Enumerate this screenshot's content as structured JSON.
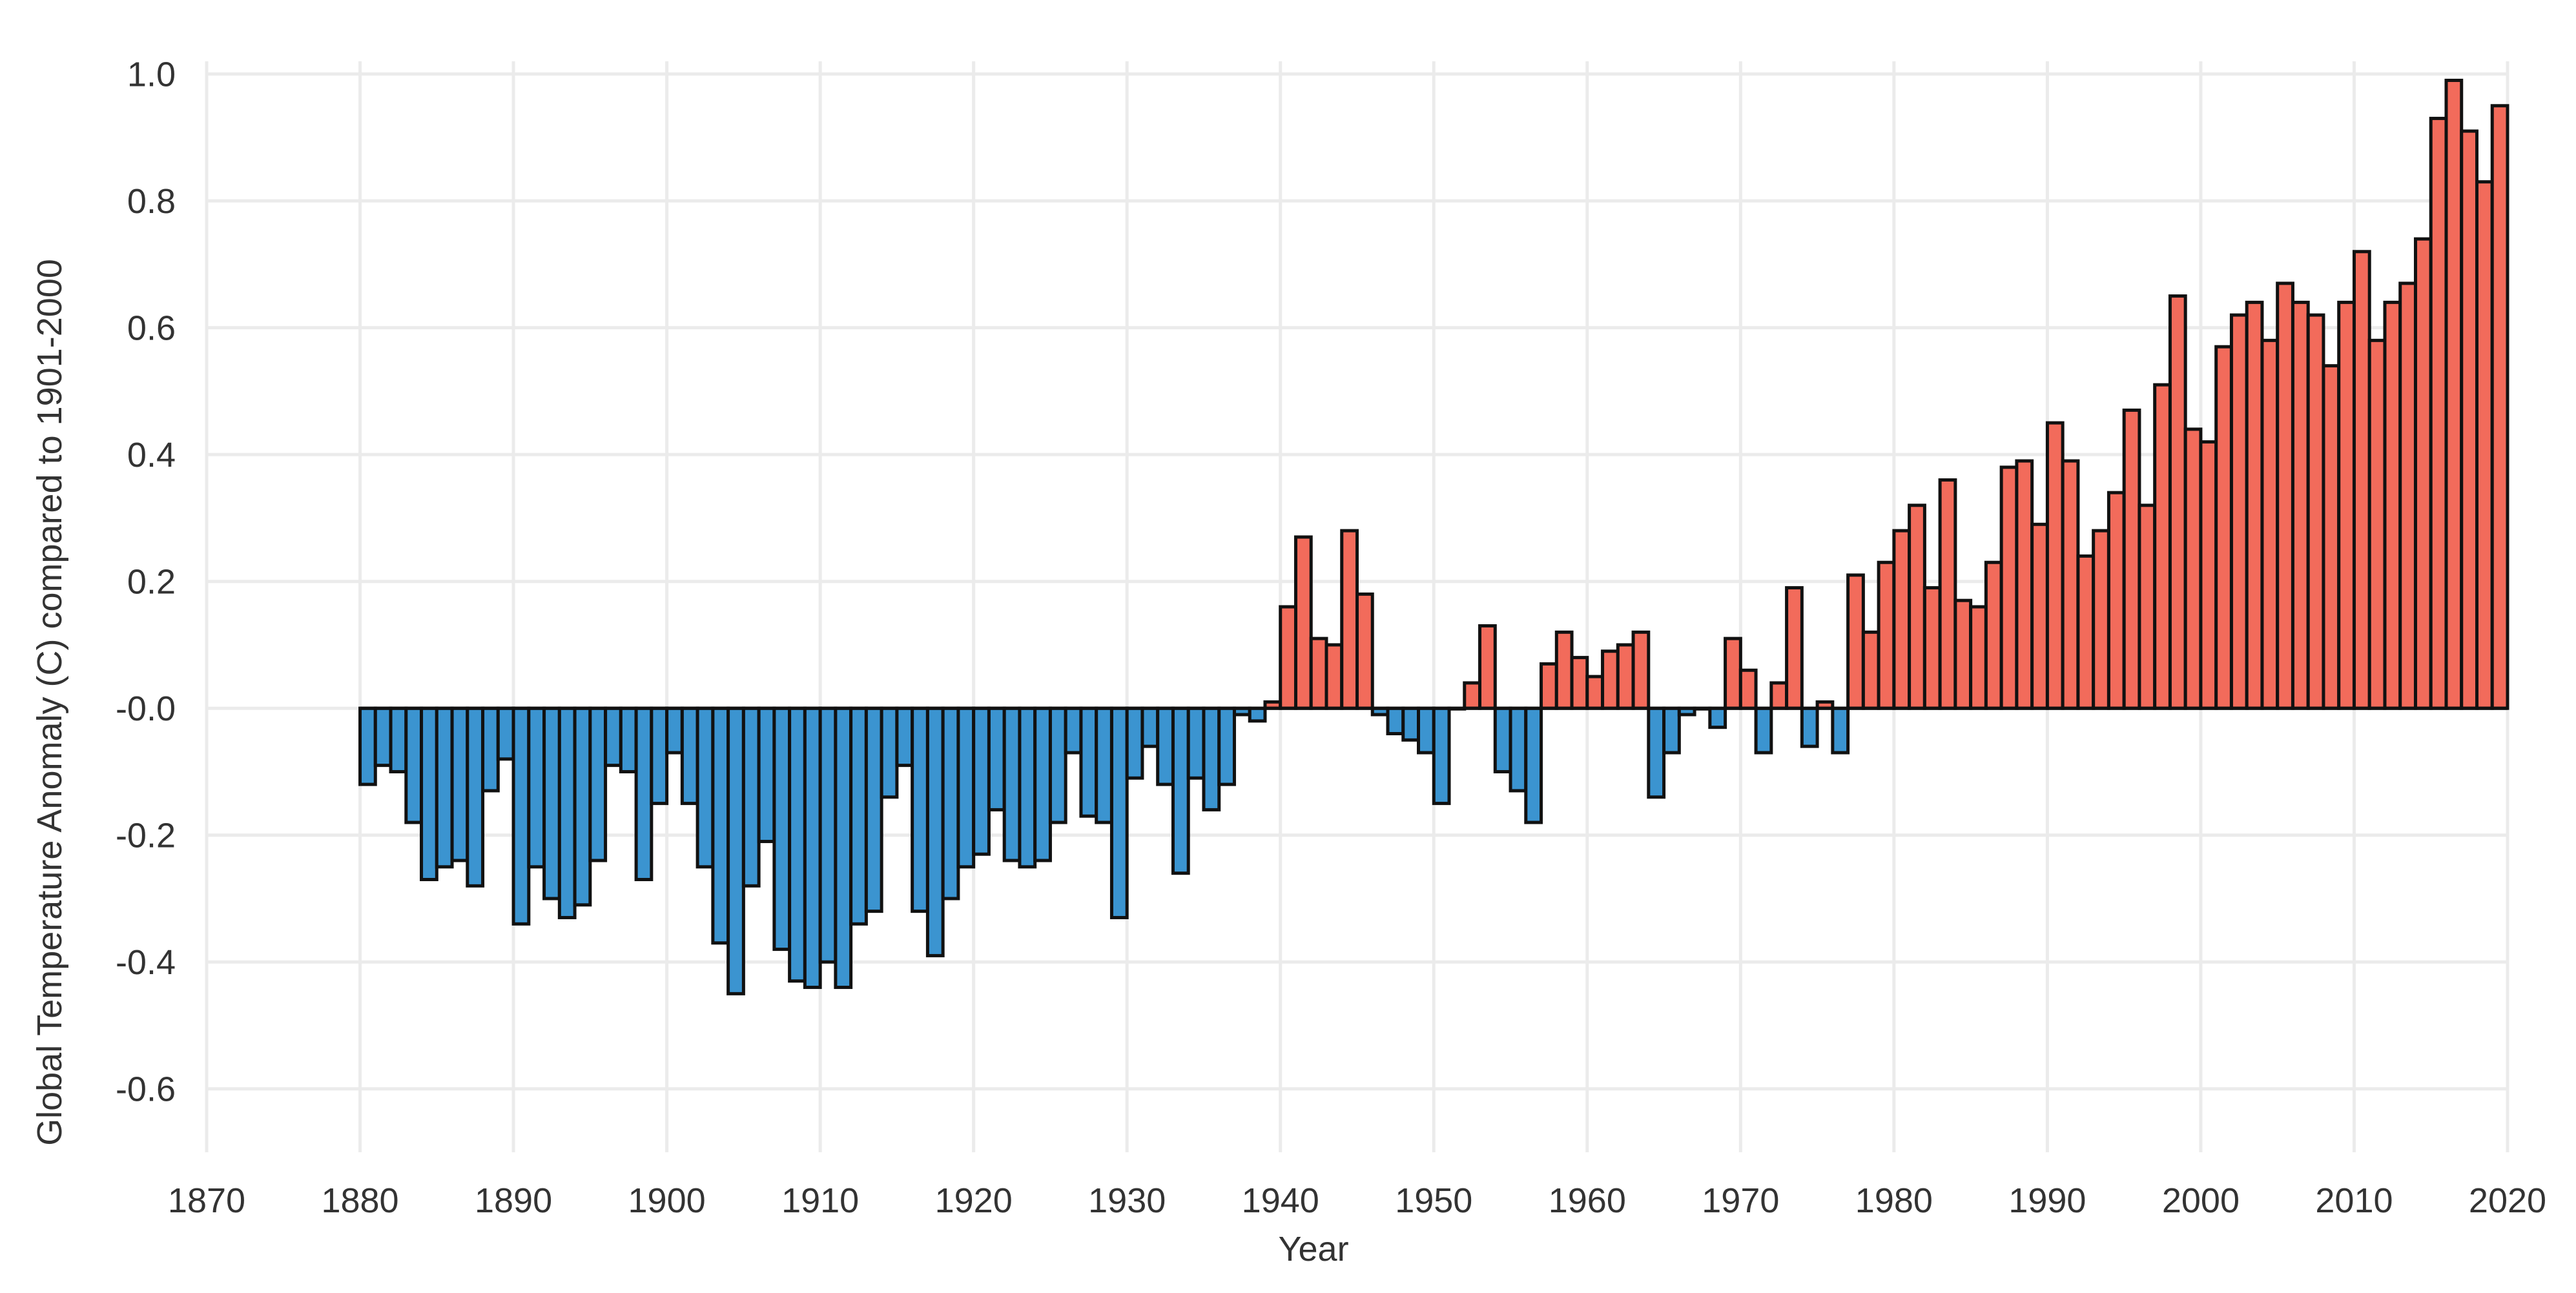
{
  "chart_data": {
    "type": "bar",
    "title": "",
    "xlabel": "Year",
    "ylabel": "Global Temperature Anomaly (C) compared to 1901-2000",
    "xlim": [
      1870,
      2020
    ],
    "ylim": [
      -0.7,
      1.02
    ],
    "x_ticks": [
      1870,
      1880,
      1890,
      1900,
      1910,
      1920,
      1930,
      1940,
      1950,
      1960,
      1970,
      1980,
      1990,
      2000,
      2010,
      2020
    ],
    "x_tick_labels": [
      "1870",
      "1880",
      "1890",
      "1900",
      "1910",
      "1920",
      "1930",
      "1940",
      "1950",
      "1960",
      "1970",
      "1980",
      "1990",
      "2000",
      "2010",
      "2020"
    ],
    "y_ticks": [
      -0.6,
      -0.4,
      -0.2,
      0.0,
      0.2,
      0.4,
      0.6,
      0.8,
      1.0
    ],
    "y_tick_labels": [
      "-0.6",
      "-0.4",
      "-0.2",
      "-0.0",
      "0.2",
      "0.4",
      "0.6",
      "0.8",
      "1.0"
    ],
    "grid": true,
    "legend": "none",
    "colors": {
      "positive": "#f26b5b",
      "negative": "#3b94d0",
      "outline": "#111111",
      "grid": "#ebebeb"
    },
    "x": [
      1880,
      1881,
      1882,
      1883,
      1884,
      1885,
      1886,
      1887,
      1888,
      1889,
      1890,
      1891,
      1892,
      1893,
      1894,
      1895,
      1896,
      1897,
      1898,
      1899,
      1900,
      1901,
      1902,
      1903,
      1904,
      1905,
      1906,
      1907,
      1908,
      1909,
      1910,
      1911,
      1912,
      1913,
      1914,
      1915,
      1916,
      1917,
      1918,
      1919,
      1920,
      1921,
      1922,
      1923,
      1924,
      1925,
      1926,
      1927,
      1928,
      1929,
      1930,
      1931,
      1932,
      1933,
      1934,
      1935,
      1936,
      1937,
      1938,
      1939,
      1940,
      1941,
      1942,
      1943,
      1944,
      1945,
      1946,
      1947,
      1948,
      1949,
      1950,
      1951,
      1952,
      1953,
      1954,
      1955,
      1956,
      1957,
      1958,
      1959,
      1960,
      1961,
      1962,
      1963,
      1964,
      1965,
      1966,
      1967,
      1968,
      1969,
      1970,
      1971,
      1972,
      1973,
      1974,
      1975,
      1976,
      1977,
      1978,
      1979,
      1980,
      1981,
      1982,
      1983,
      1984,
      1985,
      1986,
      1987,
      1988,
      1989,
      1990,
      1991,
      1992,
      1993,
      1994,
      1995,
      1996,
      1997,
      1998,
      1999,
      2000,
      2001,
      2002,
      2003,
      2004,
      2005,
      2006,
      2007,
      2008,
      2009,
      2010,
      2011,
      2012,
      2013,
      2014,
      2015,
      2016,
      2017,
      2018,
      2019
    ],
    "values": [
      -0.12,
      -0.09,
      -0.1,
      -0.18,
      -0.27,
      -0.25,
      -0.24,
      -0.28,
      -0.13,
      -0.08,
      -0.34,
      -0.25,
      -0.3,
      -0.33,
      -0.31,
      -0.24,
      -0.09,
      -0.1,
      -0.27,
      -0.15,
      -0.07,
      -0.15,
      -0.25,
      -0.37,
      -0.45,
      -0.28,
      -0.21,
      -0.38,
      -0.43,
      -0.44,
      -0.4,
      -0.44,
      -0.34,
      -0.32,
      -0.14,
      -0.09,
      -0.32,
      -0.39,
      -0.3,
      -0.25,
      -0.23,
      -0.16,
      -0.24,
      -0.25,
      -0.24,
      -0.18,
      -0.07,
      -0.17,
      -0.18,
      -0.33,
      -0.11,
      -0.06,
      -0.12,
      -0.26,
      -0.11,
      -0.16,
      -0.12,
      -0.01,
      -0.02,
      0.01,
      0.16,
      0.27,
      0.11,
      0.1,
      0.28,
      0.18,
      -0.01,
      -0.04,
      -0.05,
      -0.07,
      -0.15,
      0.0,
      0.04,
      0.13,
      -0.1,
      -0.13,
      -0.18,
      0.07,
      0.12,
      0.08,
      0.05,
      0.09,
      0.1,
      0.12,
      -0.14,
      -0.07,
      -0.01,
      0.0,
      -0.03,
      0.11,
      0.06,
      -0.07,
      0.04,
      0.19,
      -0.06,
      0.01,
      -0.07,
      0.21,
      0.12,
      0.23,
      0.28,
      0.32,
      0.19,
      0.36,
      0.17,
      0.16,
      0.23,
      0.38,
      0.39,
      0.29,
      0.45,
      0.39,
      0.24,
      0.28,
      0.34,
      0.47,
      0.32,
      0.51,
      0.65,
      0.44,
      0.42,
      0.57,
      0.62,
      0.64,
      0.58,
      0.67,
      0.64,
      0.62,
      0.54,
      0.64,
      0.72,
      0.58,
      0.64,
      0.67,
      0.74,
      0.93,
      0.99,
      0.91,
      0.83,
      0.95
    ]
  }
}
